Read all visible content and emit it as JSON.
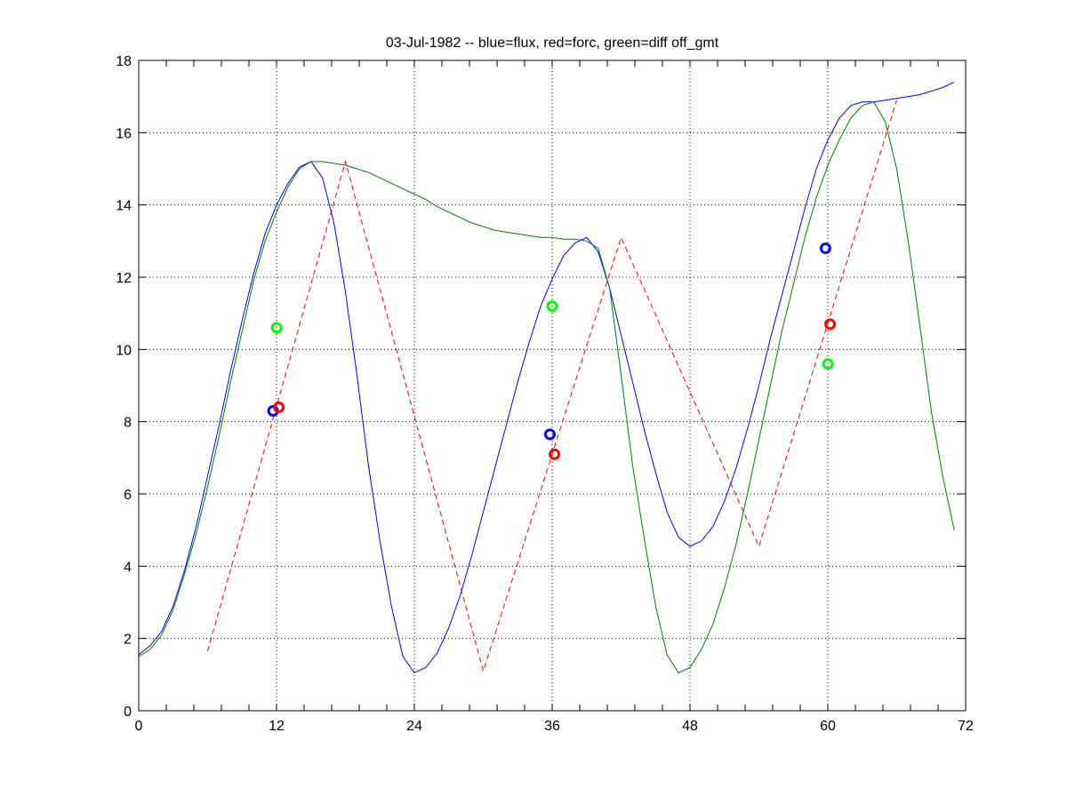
{
  "chart_data": {
    "type": "line",
    "title": "03-Jul-1982 -- blue=flux, red=forc, green=diff off_gmt",
    "xlabel": "",
    "ylabel": "",
    "xlim": [
      0,
      72
    ],
    "ylim": [
      0,
      18
    ],
    "xticks": [
      0,
      12,
      24,
      36,
      48,
      60,
      72
    ],
    "xtick_labels": [
      "0",
      "12",
      "24",
      "36",
      "48",
      "60",
      "72"
    ],
    "yticks": [
      0,
      2,
      4,
      6,
      8,
      10,
      12,
      14,
      16,
      18
    ],
    "ytick_labels": [
      "0",
      "2",
      "4",
      "6",
      "8",
      "10",
      "12",
      "14",
      "16",
      "18"
    ],
    "grid": true,
    "series": [
      {
        "name": "flux",
        "color": "#0000ff",
        "style": "solid",
        "x": [
          0,
          1,
          2,
          3,
          4,
          5,
          6,
          7,
          8,
          9,
          10,
          11,
          12,
          13,
          14,
          15,
          16,
          17,
          18,
          19,
          20,
          21,
          22,
          23,
          24,
          25,
          26,
          27,
          28,
          29,
          30,
          31,
          32,
          33,
          34,
          35,
          36,
          37,
          38,
          39,
          40,
          41,
          42,
          43,
          44,
          45,
          46,
          47,
          48,
          49,
          50,
          51,
          52,
          53,
          54,
          55,
          56,
          57,
          58,
          59,
          60,
          61,
          62,
          63,
          64,
          65,
          66,
          67,
          68,
          69,
          70,
          71
        ],
        "y": [
          1.55,
          1.8,
          2.2,
          2.9,
          3.9,
          5.1,
          6.5,
          7.9,
          9.4,
          10.8,
          12.1,
          13.2,
          14.0,
          14.6,
          15.05,
          15.2,
          14.75,
          13.5,
          11.6,
          9.3,
          6.8,
          4.7,
          2.9,
          1.5,
          1.05,
          1.2,
          1.6,
          2.3,
          3.2,
          4.3,
          5.5,
          6.7,
          7.9,
          9.1,
          10.2,
          11.2,
          11.95,
          12.6,
          12.95,
          13.1,
          12.7,
          11.7,
          10.4,
          9.1,
          7.8,
          6.6,
          5.5,
          4.8,
          4.55,
          4.7,
          5.1,
          5.8,
          6.7,
          7.8,
          9.0,
          10.3,
          11.5,
          12.7,
          13.9,
          15.0,
          15.8,
          16.4,
          16.75,
          16.85,
          16.85,
          16.9,
          16.95,
          17.0,
          17.05,
          17.15,
          17.25,
          17.4
        ]
      },
      {
        "name": "forc",
        "color": "#ff0000",
        "style": "dashed",
        "x": [
          6,
          18,
          30,
          42,
          54,
          66
        ],
        "y": [
          1.65,
          15.2,
          1.1,
          13.1,
          4.55,
          16.9
        ]
      },
      {
        "name": "diff off_gmt",
        "color": "#008000",
        "style": "solid",
        "x": [
          0,
          1,
          2,
          3,
          4,
          5,
          6,
          7,
          8,
          9,
          10,
          11,
          12,
          13,
          14,
          15,
          16,
          17,
          18,
          19,
          20,
          21,
          22,
          23,
          24,
          25,
          26,
          27,
          28,
          29,
          30,
          31,
          32,
          33,
          34,
          35,
          36,
          37,
          38,
          39,
          40,
          41,
          42,
          43,
          44,
          45,
          46,
          47,
          48,
          49,
          50,
          51,
          52,
          53,
          54,
          55,
          56,
          57,
          58,
          59,
          60,
          61,
          62,
          63,
          64,
          65,
          66,
          67,
          68,
          69,
          70,
          71
        ],
        "y": [
          1.5,
          1.7,
          2.1,
          2.8,
          3.8,
          4.9,
          6.2,
          7.6,
          9.1,
          10.5,
          11.9,
          13.0,
          13.8,
          14.5,
          15.0,
          15.2,
          15.2,
          15.15,
          15.1,
          15.0,
          14.9,
          14.75,
          14.6,
          14.45,
          14.3,
          14.15,
          13.95,
          13.8,
          13.65,
          13.5,
          13.4,
          13.3,
          13.25,
          13.2,
          13.15,
          13.1,
          13.1,
          13.05,
          13.05,
          13.0,
          12.8,
          11.7,
          9.3,
          6.8,
          4.8,
          2.9,
          1.55,
          1.05,
          1.2,
          1.7,
          2.4,
          3.4,
          4.6,
          6.0,
          7.5,
          9.0,
          10.5,
          11.8,
          13.1,
          14.2,
          15.1,
          15.8,
          16.4,
          16.75,
          16.85,
          16.3,
          15.0,
          13.0,
          10.7,
          8.3,
          6.5,
          5.0
        ]
      }
    ],
    "markers": [
      {
        "name": "flux",
        "color": "#0000ff",
        "x": [
          11.7,
          35.8,
          59.8
        ],
        "y": [
          8.3,
          7.65,
          12.8
        ]
      },
      {
        "name": "forc",
        "color": "#ff0000",
        "x": [
          12.2,
          36.2,
          60.2
        ],
        "y": [
          8.4,
          7.1,
          10.7
        ]
      },
      {
        "name": "diff",
        "color": "#00ff00",
        "x": [
          12.0,
          36.0,
          60.0
        ],
        "y": [
          10.6,
          11.2,
          9.6
        ]
      }
    ]
  }
}
